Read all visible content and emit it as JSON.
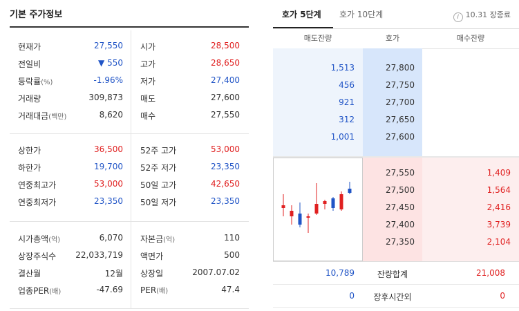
{
  "left": {
    "title": "기본 주가정보",
    "group1": [
      {
        "l1": "현재가",
        "l1s": "",
        "v1": "27,550",
        "c1": "blue",
        "l2": "시가",
        "l2s": "",
        "v2": "28,500",
        "c2": "red"
      },
      {
        "l1": "전일비",
        "l1s": "",
        "v1": "▼ 550",
        "c1": "blue",
        "l2": "고가",
        "l2s": "",
        "v2": "28,650",
        "c2": "red"
      },
      {
        "l1": "등락률",
        "l1s": "(%)",
        "v1": "-1.96%",
        "c1": "blue",
        "l2": "저가",
        "l2s": "",
        "v2": "27,400",
        "c2": "blue"
      },
      {
        "l1": "거래량",
        "l1s": "",
        "v1": "309,873",
        "c1": "dark",
        "l2": "매도",
        "l2s": "",
        "v2": "27,600",
        "c2": "dark"
      },
      {
        "l1": "거래대금",
        "l1s": "(백만)",
        "v1": "8,620",
        "c1": "dark",
        "l2": "매수",
        "l2s": "",
        "v2": "27,550",
        "c2": "dark"
      }
    ],
    "group2": [
      {
        "l1": "상한가",
        "l1s": "",
        "v1": "36,500",
        "c1": "red",
        "l2": "52주 고가",
        "l2s": "",
        "v2": "53,000",
        "c2": "red"
      },
      {
        "l1": "하한가",
        "l1s": "",
        "v1": "19,700",
        "c1": "blue",
        "l2": "52주 저가",
        "l2s": "",
        "v2": "23,350",
        "c2": "blue"
      },
      {
        "l1": "연중최고가",
        "l1s": "",
        "v1": "53,000",
        "c1": "red",
        "l2": "50일 고가",
        "l2s": "",
        "v2": "42,650",
        "c2": "red"
      },
      {
        "l1": "연중최저가",
        "l1s": "",
        "v1": "23,350",
        "c1": "blue",
        "l2": "50일 저가",
        "l2s": "",
        "v2": "23,350",
        "c2": "blue"
      }
    ],
    "group3": [
      {
        "l1": "시가총액",
        "l1s": "(억)",
        "v1": "6,070",
        "c1": "dark",
        "l2": "자본금",
        "l2s": "(억)",
        "v2": "110",
        "c2": "dark"
      },
      {
        "l1": "상장주식수",
        "l1s": "",
        "v1": "22,033,719",
        "c1": "dark",
        "l2": "액면가",
        "l2s": "",
        "v2": "500",
        "c2": "dark"
      },
      {
        "l1": "결산월",
        "l1s": "",
        "v1": "12월",
        "c1": "dark",
        "l2": "상장일",
        "l2s": "",
        "v2": "2007.07.02",
        "c2": "dark"
      },
      {
        "l1": "업종PER",
        "l1s": "(배)",
        "v1": "-47.69",
        "c1": "dark",
        "l2": "PER",
        "l2s": "(배)",
        "v2": "47.4",
        "c2": "dark"
      }
    ]
  },
  "orderbook": {
    "tab1": "호가 5단계",
    "tab2": "호가 10단계",
    "status_icon_glyph": "i",
    "status": "10.31 장종료",
    "headers": {
      "ask_qty": "매도잔량",
      "price": "호가",
      "bid_qty": "매수잔량"
    },
    "asks": [
      {
        "qty": "1,513",
        "price": "27,800"
      },
      {
        "qty": "456",
        "price": "27,750"
      },
      {
        "qty": "921",
        "price": "27,700"
      },
      {
        "qty": "312",
        "price": "27,650"
      },
      {
        "qty": "1,001",
        "price": "27,600"
      }
    ],
    "bids": [
      {
        "price": "27,550",
        "qty": "1,409"
      },
      {
        "price": "27,500",
        "qty": "1,564"
      },
      {
        "price": "27,450",
        "qty": "2,416"
      },
      {
        "price": "27,400",
        "qty": "3,739"
      },
      {
        "price": "27,350",
        "qty": "2,104"
      }
    ],
    "total": {
      "ask": "10,789",
      "label": "잔량합계",
      "bid": "21,008"
    },
    "after_hours": {
      "ask": "0",
      "label": "장후시간외",
      "bid": "0"
    }
  },
  "colors": {
    "up": "#e02020",
    "down": "#2054c6",
    "ask_bg": "#eef4fc",
    "bid_bg": "#fdeeee"
  },
  "chart_data": {
    "type": "candlestick",
    "candles": [
      {
        "o": 27640,
        "h": 27720,
        "l": 27560,
        "c": 27620,
        "color": "red"
      },
      {
        "o": 27560,
        "h": 27640,
        "l": 27500,
        "c": 27600,
        "color": "red"
      },
      {
        "o": 27580,
        "h": 27660,
        "l": 27480,
        "c": 27500,
        "color": "blue"
      },
      {
        "o": 27560,
        "h": 27580,
        "l": 27440,
        "c": 27550,
        "color": "red"
      },
      {
        "o": 27580,
        "h": 27800,
        "l": 27570,
        "c": 27650,
        "color": "red"
      },
      {
        "o": 27650,
        "h": 27680,
        "l": 27610,
        "c": 27670,
        "color": "red"
      },
      {
        "o": 27690,
        "h": 27700,
        "l": 27600,
        "c": 27620,
        "color": "blue"
      },
      {
        "o": 27610,
        "h": 27740,
        "l": 27600,
        "c": 27720,
        "color": "red"
      },
      {
        "o": 27760,
        "h": 27810,
        "l": 27720,
        "c": 27730,
        "color": "blue"
      }
    ],
    "ylim": [
      27420,
      27820
    ]
  }
}
